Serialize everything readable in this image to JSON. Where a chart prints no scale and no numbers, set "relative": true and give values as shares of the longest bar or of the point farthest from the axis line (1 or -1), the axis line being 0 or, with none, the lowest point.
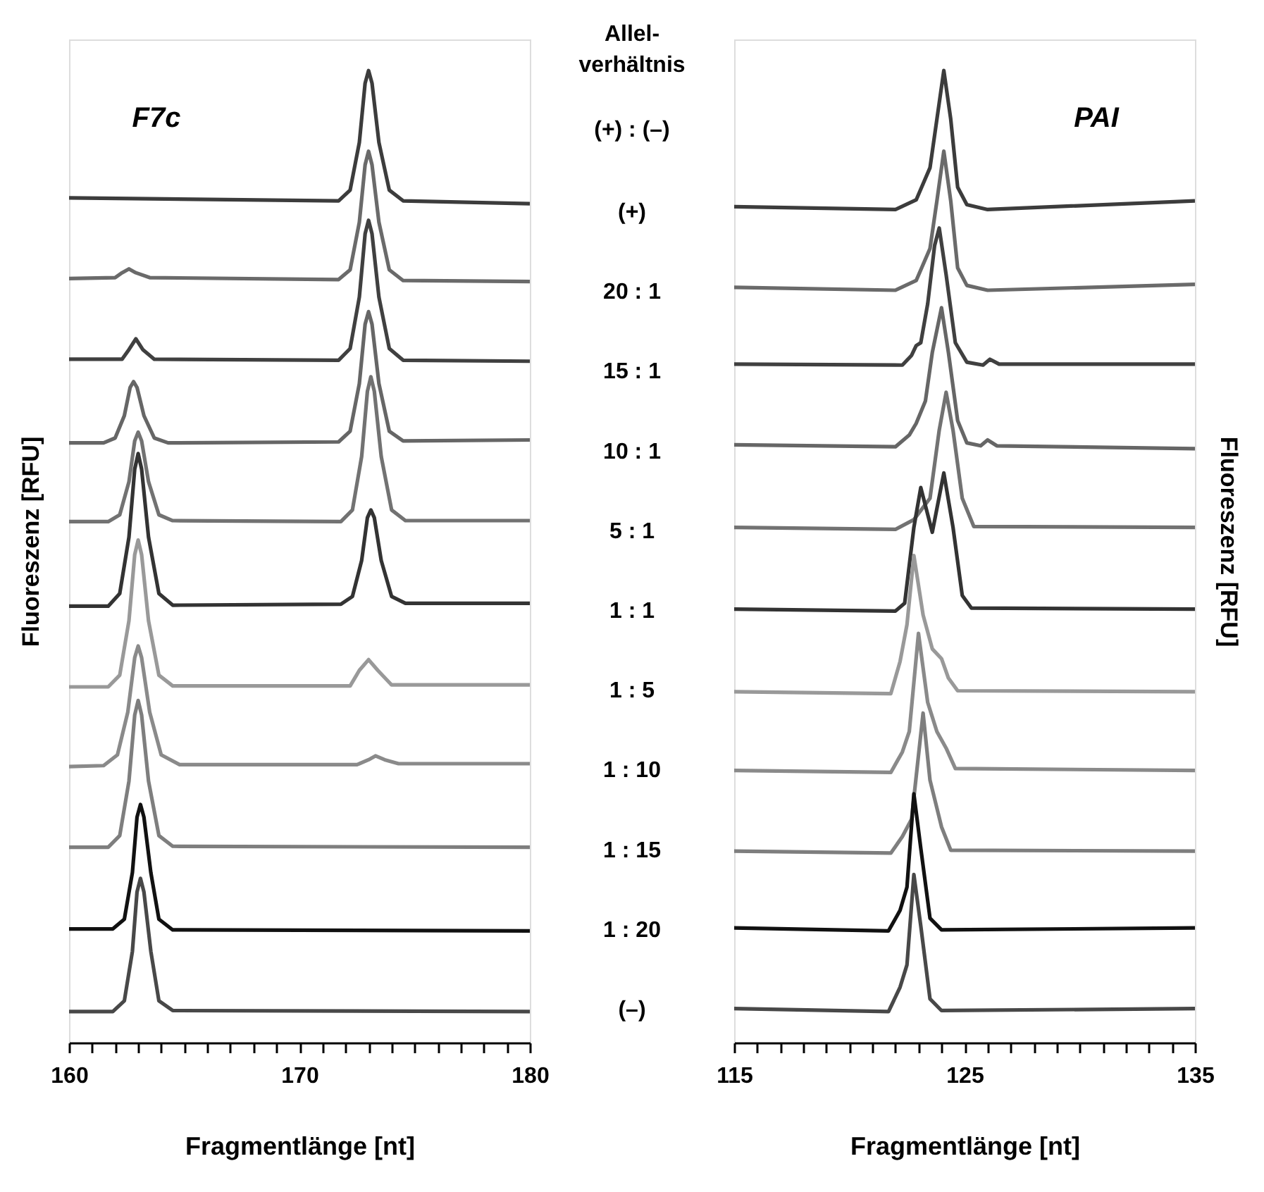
{
  "chart_data": [
    {
      "type": "line",
      "relative": true,
      "title": "F7c",
      "xlabel": "Fragmentlänge [nt]",
      "ylabel": "Fluoreszenz [RFU]",
      "tick_labels": "x",
      "xlim": [
        160,
        180
      ],
      "xticks": [
        160,
        {
          "value": 161,
          "label": null
        },
        {
          "value": 162,
          "label": null
        },
        {
          "value": 163,
          "label": null
        },
        {
          "value": 164,
          "label": null
        },
        {
          "value": 165,
          "label": null
        },
        {
          "value": 166,
          "label": null
        },
        {
          "value": 167,
          "label": null
        },
        {
          "value": 168,
          "label": null
        },
        {
          "value": 169,
          "label": null
        },
        170,
        {
          "value": 171,
          "label": null
        },
        {
          "value": 172,
          "label": null
        },
        {
          "value": 173,
          "label": null
        },
        {
          "value": 174,
          "label": null
        },
        {
          "value": 175,
          "label": null
        },
        {
          "value": 176,
          "label": null
        },
        {
          "value": 177,
          "label": null
        },
        {
          "value": 178,
          "label": null
        },
        {
          "value": 179,
          "label": null
        },
        180
      ],
      "series": [
        {
          "color": "#3c3c3c",
          "x": [
            160,
            171.7,
            172.2,
            172.6,
            172.85,
            173.0,
            173.15,
            173.45,
            173.9,
            174.5,
            180
          ],
          "values": [
            0.869,
            0.866,
            0.877,
            0.926,
            0.987,
            1.0,
            0.987,
            0.926,
            0.877,
            0.866,
            0.863
          ]
        },
        {
          "color": "#6a6a6a",
          "x": [
            160,
            162.0,
            162.3,
            162.6,
            162.9,
            163.5,
            171.7,
            172.2,
            172.6,
            172.85,
            173.0,
            173.15,
            173.45,
            173.9,
            174.5,
            180
          ],
          "values": [
            0.786,
            0.787,
            0.792,
            0.796,
            0.792,
            0.787,
            0.785,
            0.795,
            0.844,
            0.903,
            0.917,
            0.903,
            0.844,
            0.795,
            0.784,
            0.783
          ]
        },
        {
          "color": "#404040",
          "x": [
            160,
            162.3,
            162.6,
            162.9,
            163.2,
            163.7,
            171.7,
            172.2,
            172.6,
            172.85,
            173.0,
            173.15,
            173.45,
            173.9,
            174.5,
            180
          ],
          "values": [
            0.703,
            0.703,
            0.713,
            0.724,
            0.713,
            0.703,
            0.702,
            0.714,
            0.767,
            0.832,
            0.846,
            0.832,
            0.767,
            0.714,
            0.702,
            0.701
          ]
        },
        {
          "color": "#666666",
          "x": [
            160,
            161.5,
            162.0,
            162.4,
            162.65,
            162.8,
            162.95,
            163.25,
            163.7,
            164.3,
            171.7,
            172.2,
            172.6,
            172.85,
            173.0,
            173.15,
            173.45,
            173.9,
            174.5,
            180
          ],
          "values": [
            0.617,
            0.617,
            0.622,
            0.645,
            0.674,
            0.68,
            0.674,
            0.645,
            0.622,
            0.617,
            0.618,
            0.629,
            0.678,
            0.739,
            0.752,
            0.739,
            0.678,
            0.629,
            0.619,
            0.62
          ]
        },
        {
          "color": "#727272",
          "x": [
            160,
            161.7,
            162.2,
            162.6,
            162.85,
            163.0,
            163.15,
            163.45,
            163.9,
            164.5,
            171.8,
            172.3,
            172.7,
            172.95,
            173.1,
            173.25,
            173.55,
            174.0,
            174.6,
            180
          ],
          "values": [
            0.536,
            0.536,
            0.543,
            0.577,
            0.619,
            0.628,
            0.619,
            0.577,
            0.543,
            0.537,
            0.536,
            0.548,
            0.603,
            0.67,
            0.685,
            0.67,
            0.603,
            0.548,
            0.537,
            0.537
          ]
        },
        {
          "color": "#333333",
          "x": [
            160,
            161.7,
            162.2,
            162.6,
            162.85,
            163.0,
            163.15,
            163.45,
            163.9,
            164.5,
            171.8,
            172.3,
            172.7,
            172.95,
            173.1,
            173.25,
            173.55,
            174.0,
            174.6,
            180
          ],
          "values": [
            0.449,
            0.449,
            0.462,
            0.52,
            0.59,
            0.606,
            0.59,
            0.52,
            0.462,
            0.45,
            0.451,
            0.459,
            0.496,
            0.54,
            0.548,
            0.54,
            0.496,
            0.459,
            0.452,
            0.452
          ]
        },
        {
          "color": "#999999",
          "x": [
            160,
            161.7,
            162.2,
            162.6,
            162.85,
            163.0,
            163.15,
            163.45,
            163.9,
            164.5,
            172.2,
            172.6,
            173.0,
            173.4,
            174.0,
            180
          ],
          "values": [
            0.366,
            0.366,
            0.378,
            0.434,
            0.502,
            0.517,
            0.502,
            0.434,
            0.378,
            0.367,
            0.367,
            0.383,
            0.394,
            0.383,
            0.368,
            0.368
          ]
        },
        {
          "color": "#8a8a8a",
          "x": [
            160,
            161.5,
            162.1,
            162.55,
            162.85,
            163.0,
            163.15,
            163.5,
            164.0,
            164.8,
            172.5,
            173.0,
            173.3,
            173.7,
            174.3,
            180
          ],
          "values": [
            0.284,
            0.285,
            0.296,
            0.34,
            0.396,
            0.408,
            0.396,
            0.34,
            0.296,
            0.286,
            0.286,
            0.291,
            0.295,
            0.291,
            0.287,
            0.287
          ]
        },
        {
          "color": "#7e7e7e",
          "x": [
            160,
            161.7,
            162.2,
            162.6,
            162.85,
            163.0,
            163.15,
            163.45,
            163.9,
            164.5,
            180
          ],
          "values": [
            0.201,
            0.201,
            0.213,
            0.269,
            0.337,
            0.352,
            0.337,
            0.269,
            0.213,
            0.202,
            0.201
          ]
        },
        {
          "color": "#111111",
          "x": [
            160,
            161.9,
            162.4,
            162.75,
            162.95,
            163.1,
            163.25,
            163.55,
            163.9,
            164.5,
            180
          ],
          "values": [
            0.117,
            0.117,
            0.127,
            0.175,
            0.232,
            0.245,
            0.232,
            0.175,
            0.127,
            0.116,
            0.115
          ]
        },
        {
          "color": "#484848",
          "x": [
            160,
            161.9,
            162.4,
            162.75,
            162.95,
            163.1,
            163.25,
            163.55,
            163.9,
            164.5,
            180
          ],
          "values": [
            0.032,
            0.032,
            0.043,
            0.094,
            0.155,
            0.169,
            0.155,
            0.094,
            0.043,
            0.033,
            0.032
          ]
        }
      ]
    },
    {
      "type": "other",
      "title": "Allel-\nverhältnis",
      "annotations": [
        "(+) : (–)",
        "(+)",
        "20 : 1",
        "15 : 1",
        "10 : 1",
        "5 : 1",
        "1 : 1",
        "1 : 5",
        "1 : 10",
        "1 : 15",
        "1 : 20",
        "(–)"
      ]
    },
    {
      "type": "line",
      "relative": true,
      "title": "PAI",
      "xlabel": "Fragmentlänge [nt]",
      "y2label": "Fluoreszenz [RFU]",
      "tick_labels": "x",
      "xlim": [
        115,
        135
      ],
      "xticks": [
        115,
        {
          "value": 116,
          "label": null
        },
        {
          "value": 117,
          "label": null
        },
        {
          "value": 118,
          "label": null
        },
        {
          "value": 119,
          "label": null
        },
        {
          "value": 120,
          "label": null
        },
        {
          "value": 121,
          "label": null
        },
        {
          "value": 122,
          "label": null
        },
        {
          "value": 123,
          "label": null
        },
        {
          "value": 124,
          "label": null
        },
        125,
        {
          "value": 126,
          "label": null
        },
        {
          "value": 127,
          "label": null
        },
        {
          "value": 128,
          "label": null
        },
        {
          "value": 129,
          "label": null
        },
        {
          "value": 130,
          "label": null
        },
        {
          "value": 131,
          "label": null
        },
        {
          "value": 132,
          "label": null
        },
        {
          "value": 133,
          "label": null
        },
        {
          "value": 134,
          "label": null
        },
        135
      ],
      "series": [
        {
          "color": "#353535",
          "x": [
            115,
            122.0,
            122.9,
            123.5,
            123.8,
            124.1,
            124.4,
            124.7,
            125.1,
            126.0,
            135
          ],
          "values": [
            0.86,
            0.857,
            0.867,
            0.9,
            0.95,
            1.0,
            0.95,
            0.88,
            0.862,
            0.857,
            0.866
          ]
        },
        {
          "color": "#6a6a6a",
          "x": [
            115,
            122.0,
            122.9,
            123.5,
            123.8,
            124.1,
            124.4,
            124.7,
            125.1,
            126.0,
            135
          ],
          "values": [
            0.777,
            0.774,
            0.784,
            0.817,
            0.866,
            0.917,
            0.866,
            0.797,
            0.779,
            0.774,
            0.78
          ]
        },
        {
          "color": "#424242",
          "x": [
            115,
            122.3,
            122.7,
            122.9,
            123.1,
            123.4,
            123.7,
            123.9,
            124.2,
            124.6,
            125.1,
            125.8,
            126.1,
            126.5,
            135
          ],
          "values": [
            0.698,
            0.697,
            0.707,
            0.717,
            0.72,
            0.76,
            0.82,
            0.838,
            0.79,
            0.72,
            0.7,
            0.697,
            0.703,
            0.698,
            0.698
          ]
        },
        {
          "color": "#6e6e6e",
          "x": [
            115,
            122.0,
            122.6,
            122.9,
            123.3,
            123.6,
            124.0,
            124.3,
            124.7,
            125.1,
            125.7,
            126.0,
            126.4,
            135
          ],
          "values": [
            0.615,
            0.613,
            0.625,
            0.637,
            0.66,
            0.71,
            0.756,
            0.71,
            0.64,
            0.617,
            0.614,
            0.62,
            0.614,
            0.611
          ]
        },
        {
          "color": "#7a7a7a",
          "x": [
            115,
            122.0,
            122.8,
            123.5,
            123.9,
            124.2,
            124.5,
            124.9,
            125.4,
            135
          ],
          "values": [
            0.53,
            0.528,
            0.538,
            0.56,
            0.63,
            0.669,
            0.63,
            0.56,
            0.531,
            0.53
          ]
        },
        {
          "color": "#2e2e2e",
          "x": [
            115,
            122.0,
            122.4,
            122.8,
            123.1,
            123.6,
            124.1,
            124.5,
            124.9,
            125.3,
            135
          ],
          "values": [
            0.446,
            0.444,
            0.452,
            0.53,
            0.571,
            0.525,
            0.586,
            0.53,
            0.46,
            0.447,
            0.446
          ]
        },
        {
          "color": "#9a9a9a",
          "x": [
            115,
            121.8,
            122.2,
            122.5,
            122.8,
            123.2,
            123.6,
            124.0,
            124.3,
            124.7,
            135
          ],
          "values": [
            0.361,
            0.359,
            0.392,
            0.43,
            0.501,
            0.44,
            0.405,
            0.395,
            0.375,
            0.362,
            0.361
          ]
        },
        {
          "color": "#838383",
          "x": [
            115,
            121.8,
            122.3,
            122.6,
            123.0,
            123.4,
            123.8,
            124.2,
            124.6,
            135
          ],
          "values": [
            0.28,
            0.278,
            0.299,
            0.32,
            0.421,
            0.35,
            0.32,
            0.303,
            0.282,
            0.28
          ]
        },
        {
          "color": "#8e8e8e",
          "x": [
            115,
            121.8,
            122.3,
            122.7,
            123.2,
            123.5,
            124.0,
            124.4,
            135
          ],
          "values": [
            0.197,
            0.195,
            0.212,
            0.23,
            0.339,
            0.27,
            0.222,
            0.198,
            0.197
          ]
        },
        {
          "color": "#151515",
          "x": [
            115,
            121.7,
            122.2,
            122.5,
            122.8,
            123.1,
            123.5,
            124.0,
            135
          ],
          "values": [
            0.118,
            0.115,
            0.136,
            0.16,
            0.256,
            0.2,
            0.128,
            0.116,
            0.118
          ]
        },
        {
          "color": "#4a4a4a",
          "x": [
            115,
            121.7,
            122.2,
            122.5,
            122.8,
            123.1,
            123.5,
            124.0,
            135
          ],
          "values": [
            0.035,
            0.032,
            0.057,
            0.08,
            0.173,
            0.12,
            0.045,
            0.033,
            0.035
          ]
        }
      ]
    }
  ]
}
